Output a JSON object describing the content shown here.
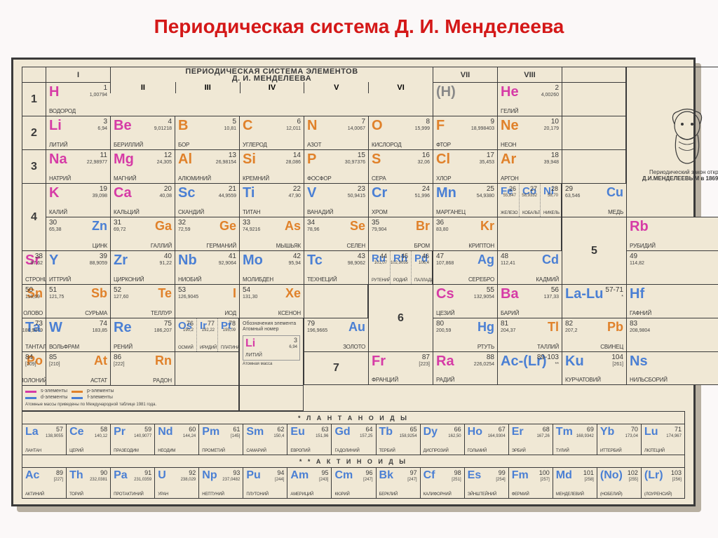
{
  "slide_title": "Периодическая система Д. И. Менделеева",
  "table_title_line1": "ПЕРИОДИЧЕСКАЯ СИСТЕМА ЭЛЕМЕНТОВ",
  "table_title_line2": "Д. И. МЕНДЕЛЕЕВА",
  "groups": [
    "I",
    "II",
    "III",
    "IV",
    "V",
    "VI",
    "VII",
    "VIII"
  ],
  "portrait_caption1": "Периодический закон открыт",
  "portrait_caption2": "Д.И.МЕНДЕЛЕЕВЫМ в 1869 году",
  "legend_s": "s-элементы",
  "legend_p": "p-элементы",
  "legend_d": "d-элементы",
  "legend_f": "f-элементы",
  "legend_note1": "Обозначения элемента Атомный номер",
  "legend_note2": "Атомные массы приведены по Международной таблице 1981 года.",
  "series_lan": "* Л А Н Т А Н О И Д Ы",
  "series_act": "* * А К Т И Н О И Д Ы",
  "legend_key_sym": "Li",
  "legend_key_num": "3",
  "legend_key_mass": "Атомная масса",
  "legend_key_name": "ЛИТИЙ",
  "colors": {
    "s": "#d63ba6",
    "p": "#e0812a",
    "d": "#4a7fd4",
    "f": "#4a7fd4",
    "text": "#3a3a3a",
    "paper": "#f0e8d5",
    "title": "#d41818"
  },
  "font": {
    "title_pt": 28,
    "symbol_pt": 20,
    "name_pt": 8,
    "num_pt": 10,
    "mass_pt": 7
  },
  "e": {
    "H": {
      "z": 1,
      "m": "1,00794",
      "n": "ВОДОРОД",
      "c": "s"
    },
    "He": {
      "z": 2,
      "m": "4,00260",
      "n": "ГЕЛИЙ",
      "c": "s"
    },
    "Li": {
      "z": 3,
      "m": "6,94",
      "n": "ЛИТИЙ",
      "c": "s"
    },
    "Be": {
      "z": 4,
      "m": "9,01218",
      "n": "БЕРИЛЛИЙ",
      "c": "s"
    },
    "B": {
      "z": 5,
      "m": "10,81",
      "n": "БОР",
      "c": "p"
    },
    "C": {
      "z": 6,
      "m": "12,011",
      "n": "УГЛЕРОД",
      "c": "p"
    },
    "N": {
      "z": 7,
      "m": "14,0067",
      "n": "АЗОТ",
      "c": "p"
    },
    "O": {
      "z": 8,
      "m": "15,999",
      "n": "КИСЛОРОД",
      "c": "p"
    },
    "F": {
      "z": 9,
      "m": "18,998403",
      "n": "ФТОР",
      "c": "p"
    },
    "Ne": {
      "z": 10,
      "m": "20,179",
      "n": "НЕОН",
      "c": "p"
    },
    "Na": {
      "z": 11,
      "m": "22,98977",
      "n": "НАТРИЙ",
      "c": "s"
    },
    "Mg": {
      "z": 12,
      "m": "24,305",
      "n": "МАГНИЙ",
      "c": "s"
    },
    "Al": {
      "z": 13,
      "m": "26,98154",
      "n": "АЛЮМИНИЙ",
      "c": "p"
    },
    "Si": {
      "z": 14,
      "m": "28,086",
      "n": "КРЕМНИЙ",
      "c": "p"
    },
    "P": {
      "z": 15,
      "m": "30,97376",
      "n": "ФОСФОР",
      "c": "p"
    },
    "S": {
      "z": 16,
      "m": "32,06",
      "n": "СЕРА",
      "c": "p"
    },
    "Cl": {
      "z": 17,
      "m": "35,453",
      "n": "ХЛОР",
      "c": "p"
    },
    "Ar": {
      "z": 18,
      "m": "39,948",
      "n": "АРГОН",
      "c": "p"
    },
    "K": {
      "z": 19,
      "m": "39,098",
      "n": "КАЛИЙ",
      "c": "s"
    },
    "Ca": {
      "z": 20,
      "m": "40,08",
      "n": "КАЛЬЦИЙ",
      "c": "s"
    },
    "Sc": {
      "z": 21,
      "m": "44,9559",
      "n": "СКАНДИЙ",
      "c": "d"
    },
    "Ti": {
      "z": 22,
      "m": "47,90",
      "n": "ТИТАН",
      "c": "d"
    },
    "V": {
      "z": 23,
      "m": "50,9415",
      "n": "ВАНАДИЙ",
      "c": "d"
    },
    "Cr": {
      "z": 24,
      "m": "51,996",
      "n": "ХРОМ",
      "c": "d"
    },
    "Mn": {
      "z": 25,
      "m": "54,9380",
      "n": "МАРГАНЕЦ",
      "c": "d"
    },
    "Fe": {
      "z": 26,
      "m": "55,847",
      "n": "ЖЕЛЕЗО",
      "c": "d"
    },
    "Co": {
      "z": 27,
      "m": "58,9332",
      "n": "КОБАЛЬТ",
      "c": "d"
    },
    "Ni": {
      "z": 28,
      "m": "58,70",
      "n": "НИКЕЛЬ",
      "c": "d"
    },
    "Cu": {
      "z": 29,
      "m": "63,546",
      "n": "МЕДЬ",
      "c": "d"
    },
    "Zn": {
      "z": 30,
      "m": "65,38",
      "n": "ЦИНК",
      "c": "d"
    },
    "Ga": {
      "z": 31,
      "m": "69,72",
      "n": "ГАЛЛИЙ",
      "c": "p"
    },
    "Ge": {
      "z": 32,
      "m": "72,59",
      "n": "ГЕРМАНИЙ",
      "c": "p"
    },
    "As": {
      "z": 33,
      "m": "74,9216",
      "n": "МЫШЬЯК",
      "c": "p"
    },
    "Se": {
      "z": 34,
      "m": "78,96",
      "n": "СЕЛЕН",
      "c": "p"
    },
    "Br": {
      "z": 35,
      "m": "79,904",
      "n": "БРОМ",
      "c": "p"
    },
    "Kr": {
      "z": 36,
      "m": "83,80",
      "n": "КРИПТОН",
      "c": "p"
    },
    "Rb": {
      "z": 37,
      "m": "85,4678",
      "n": "РУБИДИЙ",
      "c": "s"
    },
    "Sr": {
      "z": 38,
      "m": "87,62",
      "n": "СТРОНЦИЙ",
      "c": "s"
    },
    "Y": {
      "z": 39,
      "m": "88,9059",
      "n": "ИТТРИЙ",
      "c": "d"
    },
    "Zr": {
      "z": 40,
      "m": "91,22",
      "n": "ЦИРКОНИЙ",
      "c": "d"
    },
    "Nb": {
      "z": 41,
      "m": "92,9064",
      "n": "НИОБИЙ",
      "c": "d"
    },
    "Mo": {
      "z": 42,
      "m": "95,94",
      "n": "МОЛИБДЕН",
      "c": "d"
    },
    "Tc": {
      "z": 43,
      "m": "98,9062",
      "n": "ТЕХНЕЦИЙ",
      "c": "d"
    },
    "Ru": {
      "z": 44,
      "m": "101,07",
      "n": "РУТЕНИЙ",
      "c": "d"
    },
    "Rh": {
      "z": 45,
      "m": "102,9055",
      "n": "РОДИЙ",
      "c": "d"
    },
    "Pd": {
      "z": 46,
      "m": "106,4",
      "n": "ПАЛЛАДИЙ",
      "c": "d"
    },
    "Ag": {
      "z": 47,
      "m": "107,868",
      "n": "СЕРЕБРО",
      "c": "d"
    },
    "Cd": {
      "z": 48,
      "m": "112,41",
      "n": "КАДМИЙ",
      "c": "d"
    },
    "In": {
      "z": 49,
      "m": "114,82",
      "n": "ИНДИЙ",
      "c": "p"
    },
    "Sn": {
      "z": 50,
      "m": "118,69",
      "n": "ОЛОВО",
      "c": "p"
    },
    "Sb": {
      "z": 51,
      "m": "121,75",
      "n": "СУРЬМА",
      "c": "p"
    },
    "Te": {
      "z": 52,
      "m": "127,60",
      "n": "ТЕЛЛУР",
      "c": "p"
    },
    "I": {
      "z": 53,
      "m": "126,9045",
      "n": "ИОД",
      "c": "p"
    },
    "Xe": {
      "z": 54,
      "m": "131,30",
      "n": "КСЕНОН",
      "c": "p"
    },
    "Cs": {
      "z": 55,
      "m": "132,9054",
      "n": "ЦЕЗИЙ",
      "c": "s"
    },
    "Ba": {
      "z": 56,
      "m": "137,33",
      "n": "БАРИЙ",
      "c": "s"
    },
    "LaLu": {
      "z": "57-71",
      "m": "*",
      "n": "",
      "c": "d",
      "sym": "La-Lu"
    },
    "Hf": {
      "z": 72,
      "m": "178,49",
      "n": "ГАФНИЙ",
      "c": "d"
    },
    "Ta": {
      "z": 73,
      "m": "180,9479",
      "n": "ТАНТАЛ",
      "c": "d"
    },
    "W": {
      "z": 74,
      "m": "183,85",
      "n": "ВОЛЬФРАМ",
      "c": "d"
    },
    "Re": {
      "z": 75,
      "m": "186,207",
      "n": "РЕНИЙ",
      "c": "d"
    },
    "Os": {
      "z": 76,
      "m": "190,2",
      "n": "ОСМИЙ",
      "c": "d"
    },
    "Ir": {
      "z": 77,
      "m": "192,22",
      "n": "ИРИДИЙ",
      "c": "d"
    },
    "Pt": {
      "z": 78,
      "m": "195,09",
      "n": "ПЛАТИНА",
      "c": "d"
    },
    "Au": {
      "z": 79,
      "m": "196,9665",
      "n": "ЗОЛОТО",
      "c": "d"
    },
    "Hg": {
      "z": 80,
      "m": "200,59",
      "n": "РТУТЬ",
      "c": "d"
    },
    "Tl": {
      "z": 81,
      "m": "204,37",
      "n": "ТАЛЛИЙ",
      "c": "p"
    },
    "Pb": {
      "z": 82,
      "m": "207,2",
      "n": "СВИНЕЦ",
      "c": "p"
    },
    "Bi": {
      "z": 83,
      "m": "208,9804",
      "n": "ВИСМУТ",
      "c": "p"
    },
    "Po": {
      "z": 84,
      "m": "[209]",
      "n": "ПОЛОНИЙ",
      "c": "p"
    },
    "At": {
      "z": 85,
      "m": "[210]",
      "n": "АСТАТ",
      "c": "p"
    },
    "Rn": {
      "z": 86,
      "m": "[222]",
      "n": "РАДОН",
      "c": "p"
    },
    "Fr": {
      "z": 87,
      "m": "[223]",
      "n": "ФРАНЦИЙ",
      "c": "s"
    },
    "Ra": {
      "z": 88,
      "m": "226,0254",
      "n": "РАДИЙ",
      "c": "s"
    },
    "AcLr": {
      "z": "89-103",
      "m": "**",
      "n": "",
      "c": "d",
      "sym": "Ac-(Lr)"
    },
    "Ku": {
      "z": 104,
      "m": "[261]",
      "n": "КУРЧАТОВИЙ",
      "c": "d"
    },
    "Ns": {
      "z": 105,
      "m": "[261]",
      "n": "НИЛЬСБОРИЙ",
      "c": "d"
    },
    "La": {
      "z": 57,
      "m": "138,9055",
      "n": "ЛАНТАН",
      "c": "f"
    },
    "Ce": {
      "z": 58,
      "m": "140,12",
      "n": "ЦЕРИЙ",
      "c": "f"
    },
    "Pr": {
      "z": 59,
      "m": "140,9077",
      "n": "ПРАЗЕОДИМ",
      "c": "f"
    },
    "Nd": {
      "z": 60,
      "m": "144,24",
      "n": "НЕОДИМ",
      "c": "f"
    },
    "Pm": {
      "z": 61,
      "m": "[145]",
      "n": "ПРОМЕТИЙ",
      "c": "f"
    },
    "Sm": {
      "z": 62,
      "m": "150,4",
      "n": "САМАРИЙ",
      "c": "f"
    },
    "Eu": {
      "z": 63,
      "m": "151,96",
      "n": "ЕВРОПИЙ",
      "c": "f"
    },
    "Gd": {
      "z": 64,
      "m": "157,25",
      "n": "ГАДОЛИНИЙ",
      "c": "f"
    },
    "Tb": {
      "z": 65,
      "m": "158,9254",
      "n": "ТЕРБИЙ",
      "c": "f"
    },
    "Dy": {
      "z": 66,
      "m": "162,50",
      "n": "ДИСПРОЗИЙ",
      "c": "f"
    },
    "Ho": {
      "z": 67,
      "m": "164,9304",
      "n": "ГОЛЬМИЙ",
      "c": "f"
    },
    "Er": {
      "z": 68,
      "m": "167,26",
      "n": "ЭРБИЙ",
      "c": "f"
    },
    "Tm": {
      "z": 69,
      "m": "168,9342",
      "n": "ТУЛИЙ",
      "c": "f"
    },
    "Yb": {
      "z": 70,
      "m": "173,04",
      "n": "ИТТЕРБИЙ",
      "c": "f"
    },
    "Lu": {
      "z": 71,
      "m": "174,967",
      "n": "ЛЮТЕЦИЙ",
      "c": "f"
    },
    "Ac": {
      "z": 89,
      "m": "[227]",
      "n": "АКТИНИЙ",
      "c": "f"
    },
    "Th": {
      "z": 90,
      "m": "232,0381",
      "n": "ТОРИЙ",
      "c": "f"
    },
    "Pa": {
      "z": 91,
      "m": "231,0359",
      "n": "ПРОТАКТИНИЙ",
      "c": "f"
    },
    "U": {
      "z": 92,
      "m": "238,029",
      "n": "УРАН",
      "c": "f"
    },
    "Np": {
      "z": 93,
      "m": "237,0482",
      "n": "НЕПТУНИЙ",
      "c": "f"
    },
    "Pu": {
      "z": 94,
      "m": "[244]",
      "n": "ПЛУТОНИЙ",
      "c": "f"
    },
    "Am": {
      "z": 95,
      "m": "[243]",
      "n": "АМЕРИЦИЙ",
      "c": "f"
    },
    "Cm": {
      "z": 96,
      "m": "[247]",
      "n": "КЮРИЙ",
      "c": "f"
    },
    "Bk": {
      "z": 97,
      "m": "[247]",
      "n": "БЕРКЛИЙ",
      "c": "f"
    },
    "Cf": {
      "z": 98,
      "m": "[251]",
      "n": "КАЛИФОРНИЙ",
      "c": "f"
    },
    "Es": {
      "z": 99,
      "m": "[254]",
      "n": "ЭЙНШТЕЙНИЙ",
      "c": "f"
    },
    "Fm": {
      "z": 100,
      "m": "[257]",
      "n": "ФЕРМИЙ",
      "c": "f"
    },
    "Md": {
      "z": 101,
      "m": "[258]",
      "n": "МЕНДЕЛЕВИЙ",
      "c": "f"
    },
    "No": {
      "z": 102,
      "m": "[255]",
      "n": "(НОБЕЛИЙ)",
      "c": "f",
      "sym": "(No)"
    },
    "Lr": {
      "z": 103,
      "m": "[256]",
      "n": "(ЛОУРЕНСИЙ)",
      "c": "f",
      "sym": "(Lr)"
    }
  }
}
